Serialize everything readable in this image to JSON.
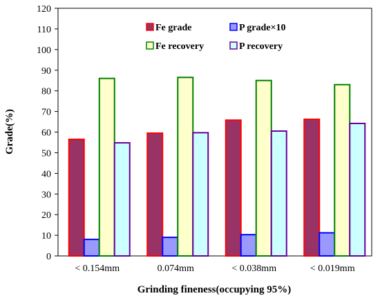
{
  "chart_data": {
    "type": "bar",
    "title": "",
    "xlabel": "Grinding fineness(occupying 95%)",
    "ylabel": "Grade(%)",
    "ylim": [
      0,
      120
    ],
    "yticks": [
      0,
      10,
      20,
      30,
      40,
      50,
      60,
      70,
      80,
      90,
      100,
      110,
      120
    ],
    "categories": [
      "< 0.154mm",
      "0.074mm",
      "< 0.038mm",
      "< 0.019mm"
    ],
    "grid": false,
    "legend_position": "top",
    "series": [
      {
        "name": "Fe grade",
        "values": [
          56.5,
          59.5,
          65.8,
          66.2
        ],
        "fill": "#993366",
        "stroke": "#ff0000"
      },
      {
        "name": "P grade×10",
        "values": [
          8.0,
          9.0,
          10.3,
          11.2
        ],
        "fill": "#9999ff",
        "stroke": "#0000ff"
      },
      {
        "name": "Fe recovery",
        "values": [
          86.0,
          86.5,
          85.0,
          83.0
        ],
        "fill": "#ffffcc",
        "stroke": "#008000"
      },
      {
        "name": "P recovery",
        "values": [
          54.8,
          59.7,
          60.5,
          64.2
        ],
        "fill": "#ccffff",
        "stroke": "#660099"
      }
    ]
  }
}
